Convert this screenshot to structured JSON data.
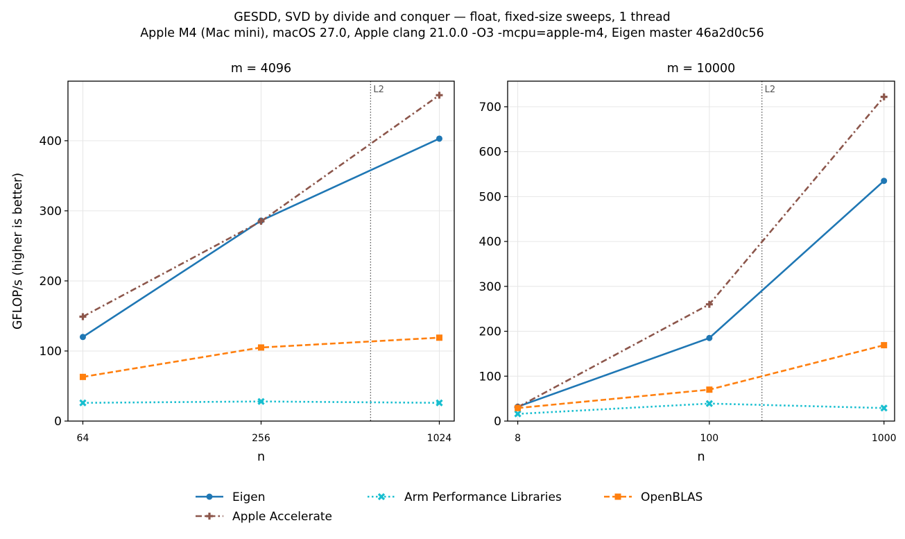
{
  "figure": {
    "title_line1": "GESDD, SVD by divide and conquer — float, fixed-size sweeps, 1 thread",
    "title_line2": "Apple M4 (Mac mini), macOS 27.0, Apple clang 21.0.0 -O3 -mcpu=apple-m4, Eigen master 46a2d0c56",
    "ylabel": "GFLOP/s (higher is better)",
    "xlabel": "n"
  },
  "series_style": [
    {
      "name": "Eigen",
      "color": "#1f77b4",
      "dash": "solid",
      "marker": "circle"
    },
    {
      "name": "Apple Accelerate",
      "color": "#8c564b",
      "dash": "dashdot",
      "marker": "plus"
    },
    {
      "name": "Arm Performance Libraries",
      "color": "#17becf",
      "dash": "dotted",
      "marker": "x"
    },
    {
      "name": "OpenBLAS",
      "color": "#ff7f0e",
      "dash": "dashed",
      "marker": "square"
    }
  ],
  "legend": {
    "placement": "bottom-center",
    "entries": [
      "Eigen",
      "Apple Accelerate",
      "Arm Performance Libraries",
      "OpenBLAS"
    ]
  },
  "chart_data": [
    {
      "type": "line",
      "title": "m = 4096",
      "xlabel": "n",
      "ylabel": "GFLOP/s (higher is better)",
      "xscale": "log2",
      "x": [
        64,
        256,
        1024
      ],
      "x_tick_labels": [
        "64",
        "256",
        "1024"
      ],
      "xlim": [
        57,
        1150
      ],
      "ylim": [
        0,
        485
      ],
      "y_ticks": [
        0,
        100,
        200,
        300,
        400
      ],
      "grid": true,
      "vline": {
        "label": "L2",
        "x": 600
      },
      "series": [
        {
          "name": "Eigen",
          "values": [
            120,
            286,
            403
          ]
        },
        {
          "name": "Apple Accelerate",
          "values": [
            149,
            285,
            465
          ]
        },
        {
          "name": "Arm Performance Libraries",
          "values": [
            26,
            28,
            26
          ]
        },
        {
          "name": "OpenBLAS",
          "values": [
            63,
            105,
            119
          ]
        }
      ]
    },
    {
      "type": "line",
      "title": "m = 10000",
      "xlabel": "n",
      "ylabel": "",
      "xscale": "log10",
      "x": [
        8,
        100,
        1000
      ],
      "x_tick_labels": [
        "8",
        "100",
        "1000"
      ],
      "xlim": [
        7,
        1150
      ],
      "ylim": [
        0,
        757
      ],
      "y_ticks": [
        0,
        100,
        200,
        300,
        400,
        500,
        600,
        700
      ],
      "grid": true,
      "vline": {
        "label": "L2",
        "x": 200
      },
      "series": [
        {
          "name": "Eigen",
          "values": [
            32,
            185,
            535
          ]
        },
        {
          "name": "Apple Accelerate",
          "values": [
            31,
            260,
            722
          ]
        },
        {
          "name": "Arm Performance Libraries",
          "values": [
            16,
            39,
            29
          ]
        },
        {
          "name": "OpenBLAS",
          "values": [
            29,
            70,
            169
          ]
        }
      ]
    }
  ]
}
